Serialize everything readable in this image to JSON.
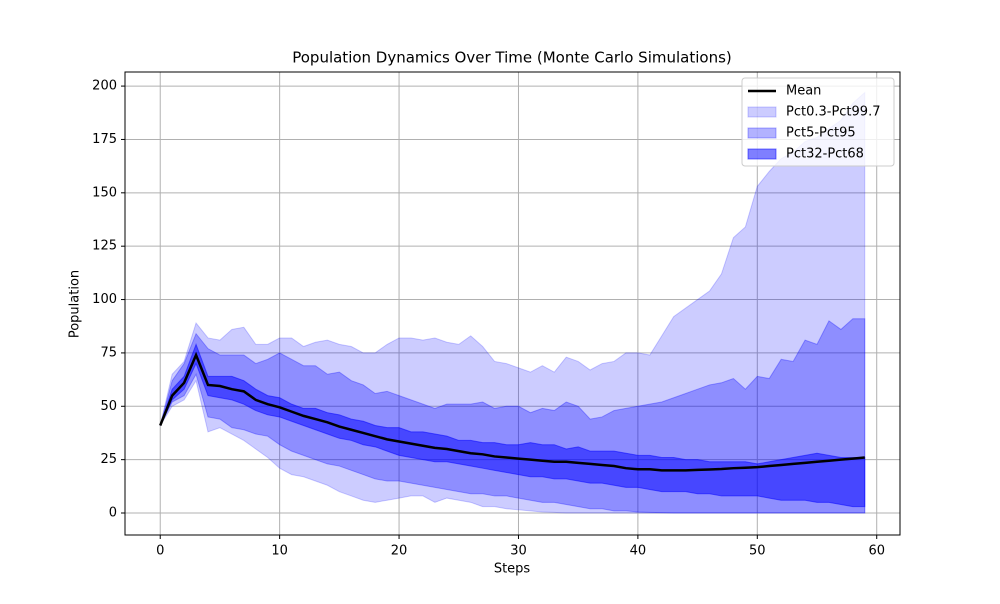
{
  "chart_data": {
    "type": "band-line",
    "title": "Population Dynamics Over Time (Monte Carlo Simulations)",
    "x_label": "Steps",
    "y_label": "Population",
    "x": [
      0,
      1,
      2,
      3,
      4,
      5,
      6,
      7,
      8,
      9,
      10,
      11,
      12,
      13,
      14,
      15,
      16,
      17,
      18,
      19,
      20,
      21,
      22,
      23,
      24,
      25,
      26,
      27,
      28,
      29,
      30,
      31,
      32,
      33,
      34,
      35,
      36,
      37,
      38,
      39,
      40,
      41,
      42,
      43,
      44,
      45,
      46,
      47,
      48,
      49,
      50,
      51,
      52,
      53,
      54,
      55,
      56,
      57,
      58,
      59
    ],
    "xlim": [
      -2.95,
      61.95
    ],
    "xticks": [
      0,
      10,
      20,
      30,
      40,
      50,
      60
    ],
    "ylim": [
      -10.3,
      206.6
    ],
    "yticks": [
      0,
      25,
      50,
      75,
      100,
      125,
      150,
      175,
      200
    ],
    "grid": true,
    "legend": "upper right",
    "series": [
      {
        "name": "Mean",
        "color": "#000000",
        "values": [
          41,
          55,
          61,
          74,
          60,
          59.5,
          58,
          57,
          53,
          51,
          49.5,
          47.5,
          45.5,
          44,
          42.5,
          40.5,
          39,
          37.5,
          36,
          34.5,
          33.5,
          32.5,
          31.5,
          30.5,
          30,
          29,
          28,
          27.5,
          26.5,
          26,
          25.5,
          25,
          24.5,
          24,
          24,
          23.5,
          23,
          22.5,
          22,
          21,
          20.5,
          20.5,
          20,
          20,
          20,
          20.2,
          20.4,
          20.6,
          21,
          21.2,
          21.5,
          22,
          22.5,
          23,
          23.5,
          24,
          24.5,
          25,
          25.5,
          26
        ]
      },
      {
        "name": "Pct0.3-Pct99.7",
        "color": "#0000ff",
        "alpha": 0.2,
        "lower": [
          41,
          50,
          53,
          62,
          38,
          40,
          37,
          34,
          30,
          26,
          21,
          18,
          17,
          15,
          13,
          10,
          8,
          6,
          5,
          6,
          7,
          8,
          8,
          5,
          7,
          6,
          5,
          3,
          3,
          2,
          1.5,
          1,
          0.5,
          0.3,
          0,
          0,
          0,
          0,
          0,
          0,
          0,
          0,
          0,
          0,
          0,
          0,
          0,
          0,
          0,
          0,
          0,
          0,
          0,
          0,
          0,
          0,
          0,
          0,
          0,
          0
        ],
        "upper": [
          41,
          65,
          71,
          89,
          82,
          81,
          86,
          87,
          79,
          79,
          82,
          82,
          78,
          80,
          81,
          79,
          78,
          75,
          75,
          79,
          82,
          82,
          81,
          82,
          80,
          79,
          83,
          78,
          71,
          70,
          68,
          66,
          69,
          66,
          73,
          71,
          67,
          70,
          71,
          75,
          75,
          74,
          83,
          92,
          96,
          100,
          104,
          112,
          129,
          134,
          153,
          160,
          166,
          169,
          174,
          176,
          180,
          184,
          192,
          197
        ]
      },
      {
        "name": "Pct5-Pct95",
        "color": "#0000ff",
        "alpha": 0.3,
        "lower": [
          41,
          52,
          55,
          65,
          45,
          44,
          40,
          39,
          37,
          36,
          32,
          29,
          27,
          25,
          23,
          22,
          20,
          18,
          16,
          15,
          15,
          14,
          13,
          12,
          11,
          10,
          9,
          9,
          8,
          8,
          7,
          6,
          5,
          5,
          4,
          3,
          2,
          2,
          1,
          1,
          0.5,
          0.3,
          0.2,
          0,
          0,
          0,
          0,
          0,
          0,
          0,
          0,
          0,
          0,
          0,
          0,
          0,
          0,
          0,
          0,
          0
        ],
        "upper": [
          41,
          62,
          70,
          84,
          77,
          74,
          74,
          74,
          70,
          72,
          75,
          72,
          69,
          69,
          65,
          66,
          62,
          60,
          56,
          57,
          55,
          53,
          51,
          49,
          51,
          51,
          51,
          52,
          49,
          50,
          50,
          47,
          49,
          48,
          52,
          50,
          44,
          45,
          48,
          49,
          50,
          51,
          52,
          54,
          56,
          58,
          60,
          61,
          63,
          58,
          64,
          63,
          72,
          71,
          81,
          79,
          90,
          86,
          91,
          91
        ]
      },
      {
        "name": "Pct32-Pct68",
        "color": "#0000ff",
        "alpha": 0.5,
        "lower": [
          41,
          53,
          58,
          70,
          55,
          54,
          53,
          51,
          48,
          46,
          45,
          43,
          41,
          39,
          37,
          35,
          34,
          32,
          31,
          29,
          27,
          26,
          25,
          24,
          24,
          23,
          22,
          21,
          20,
          19,
          18,
          17,
          17,
          16,
          16,
          15,
          14,
          14,
          13,
          12,
          12,
          11,
          10,
          10,
          10,
          9,
          9,
          8,
          8,
          8,
          8,
          7,
          6,
          6,
          6,
          5,
          5,
          4,
          3,
          3
        ],
        "upper": [
          41,
          58,
          64,
          79,
          64,
          64,
          64,
          62,
          58,
          55,
          54,
          51,
          49,
          49,
          47,
          46,
          44,
          43,
          41,
          40,
          40,
          38,
          38,
          37,
          36,
          34,
          34,
          33,
          33,
          32,
          32,
          33,
          32,
          32,
          30,
          31,
          29,
          29,
          29,
          28,
          27,
          27,
          26,
          26,
          25,
          25,
          24,
          24,
          24,
          24,
          23,
          24,
          25,
          26,
          27,
          28,
          27,
          26,
          26,
          26
        ]
      }
    ]
  }
}
